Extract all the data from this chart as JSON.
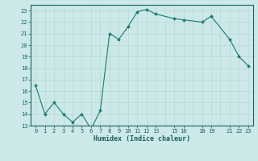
{
  "xlabel": "Humidex (Indice chaleur)",
  "x_values": [
    0,
    1,
    2,
    3,
    4,
    5,
    6,
    7,
    8,
    9,
    10,
    11,
    12,
    13,
    15,
    16,
    18,
    19,
    21,
    22,
    23
  ],
  "y_values": [
    16.5,
    14.0,
    15.0,
    14.0,
    13.3,
    14.0,
    12.7,
    14.3,
    21.0,
    20.5,
    21.6,
    22.9,
    23.1,
    22.7,
    22.3,
    22.2,
    22.0,
    22.5,
    20.5,
    19.0,
    18.2
  ],
  "line_color": "#1a7a6e",
  "marker_color": "#1a7a6e",
  "bg_color": "#cce8e8",
  "grid_major_color": "#b8d8d8",
  "grid_minor_color": "#c8e0e0",
  "text_color": "#1a6060",
  "ylim": [
    13,
    23.5
  ],
  "yticks": [
    13,
    14,
    15,
    16,
    17,
    18,
    19,
    20,
    21,
    22,
    23
  ],
  "xlim": [
    -0.5,
    23.5
  ],
  "xtick_positions": [
    0,
    1,
    2,
    3,
    4,
    5,
    6,
    7,
    8,
    9,
    10,
    11,
    12,
    13,
    15,
    16,
    18,
    19,
    21,
    22,
    23
  ],
  "xtick_labels": [
    "0",
    "1",
    "2",
    "3",
    "4",
    "5",
    "6",
    "7",
    "8",
    "9",
    "10",
    "11",
    "12",
    "13",
    "15",
    "16",
    "18",
    "19",
    "21",
    "22",
    "23"
  ]
}
